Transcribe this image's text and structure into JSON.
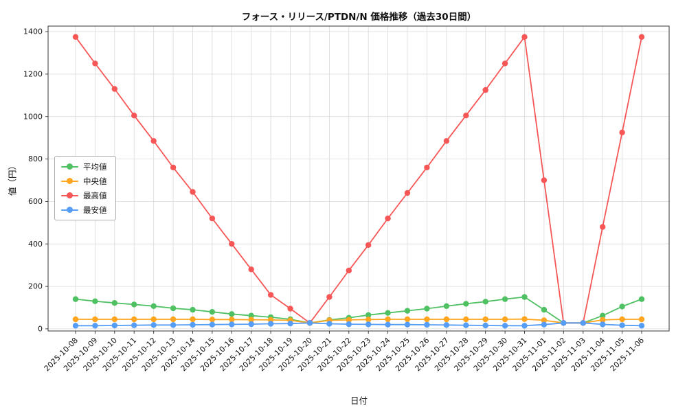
{
  "chart_data": {
    "type": "line",
    "title": "フォース・リリース/PTDN/N 価格推移（過去30日間）",
    "xlabel": "日付",
    "ylabel": "値（円）",
    "ylim": [
      0,
      1400
    ],
    "ytick_step": 200,
    "grid": true,
    "grid_color": "#d9d9d9",
    "legend_position": "left",
    "categories": [
      "2025-10-08",
      "2025-10-09",
      "2025-10-10",
      "2025-10-11",
      "2025-10-12",
      "2025-10-13",
      "2025-10-14",
      "2025-10-15",
      "2025-10-16",
      "2025-10-17",
      "2025-10-18",
      "2025-10-19",
      "2025-10-20",
      "2025-10-21",
      "2025-10-22",
      "2025-10-23",
      "2025-10-24",
      "2025-10-25",
      "2025-10-26",
      "2025-10-27",
      "2025-10-28",
      "2025-10-29",
      "2025-10-30",
      "2025-10-31",
      "2025-11-01",
      "2025-11-02",
      "2025-11-03",
      "2025-11-04",
      "2025-11-05",
      "2025-11-06"
    ],
    "series": [
      {
        "key": "mean",
        "name": "平均値",
        "color": "#4fc163",
        "values": [
          140,
          130,
          122,
          115,
          107,
          97,
          90,
          80,
          70,
          62,
          55,
          45,
          28,
          42,
          52,
          65,
          75,
          85,
          95,
          107,
          118,
          128,
          140,
          150,
          90,
          28,
          28,
          62,
          105,
          140
        ]
      },
      {
        "key": "median",
        "name": "中央値",
        "color": "#ffa51f",
        "values": [
          45,
          45,
          45,
          45,
          45,
          45,
          45,
          44,
          44,
          43,
          42,
          40,
          28,
          40,
          42,
          44,
          45,
          45,
          45,
          45,
          45,
          45,
          45,
          46,
          40,
          28,
          28,
          42,
          45,
          45
        ]
      },
      {
        "key": "max",
        "name": "最高値",
        "color": "#f65656",
        "values": [
          1375,
          1250,
          1130,
          1005,
          885,
          760,
          645,
          520,
          400,
          280,
          160,
          95,
          28,
          150,
          275,
          395,
          520,
          640,
          760,
          885,
          1005,
          1125,
          1250,
          1375,
          700,
          28,
          28,
          480,
          925,
          1375
        ]
      },
      {
        "key": "min",
        "name": "最安値",
        "color": "#569df5",
        "values": [
          15,
          15,
          16,
          17,
          18,
          18,
          19,
          20,
          21,
          22,
          24,
          25,
          28,
          24,
          22,
          21,
          20,
          20,
          19,
          18,
          17,
          16,
          15,
          15,
          20,
          28,
          28,
          21,
          17,
          15
        ]
      }
    ]
  }
}
